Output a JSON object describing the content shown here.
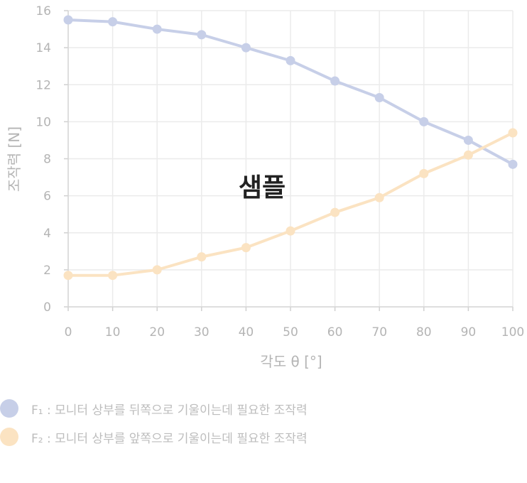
{
  "chart_data": {
    "type": "line",
    "x": [
      0,
      10,
      20,
      30,
      40,
      50,
      60,
      70,
      80,
      90,
      100
    ],
    "series": [
      {
        "key": "F1",
        "color": "#c7cfe8",
        "values": [
          15.5,
          15.4,
          15.0,
          14.7,
          14.0,
          13.3,
          12.2,
          11.3,
          10.0,
          9.0,
          7.7
        ]
      },
      {
        "key": "F2",
        "color": "#fbe3c2",
        "values": [
          1.7,
          1.7,
          2.0,
          2.7,
          3.2,
          4.1,
          5.1,
          5.9,
          7.2,
          8.2,
          9.4
        ]
      }
    ],
    "xlabel": "각도 θ [°]",
    "ylabel": "조작력 [N]",
    "xlim": [
      0,
      100
    ],
    "ylim": [
      0,
      16
    ],
    "xticks": [
      "0",
      "10",
      "20",
      "30",
      "40",
      "50",
      "60",
      "70",
      "80",
      "90",
      "100"
    ],
    "yticks": [
      "0",
      "2",
      "4",
      "6",
      "8",
      "10",
      "12",
      "14",
      "16"
    ],
    "grid": true,
    "legend_position": "bottom-left",
    "watermark": "샘플"
  },
  "legend": [
    {
      "label": "F₁ : 모니터 상부를 뒤쪽으로 기울이는데 필요한 조작력",
      "color": "#c7cfe8"
    },
    {
      "label": "F₂ : 모니터 상부를 앞쪽으로 기울이는데 필요한 조작력",
      "color": "#fbe3c2"
    }
  ]
}
